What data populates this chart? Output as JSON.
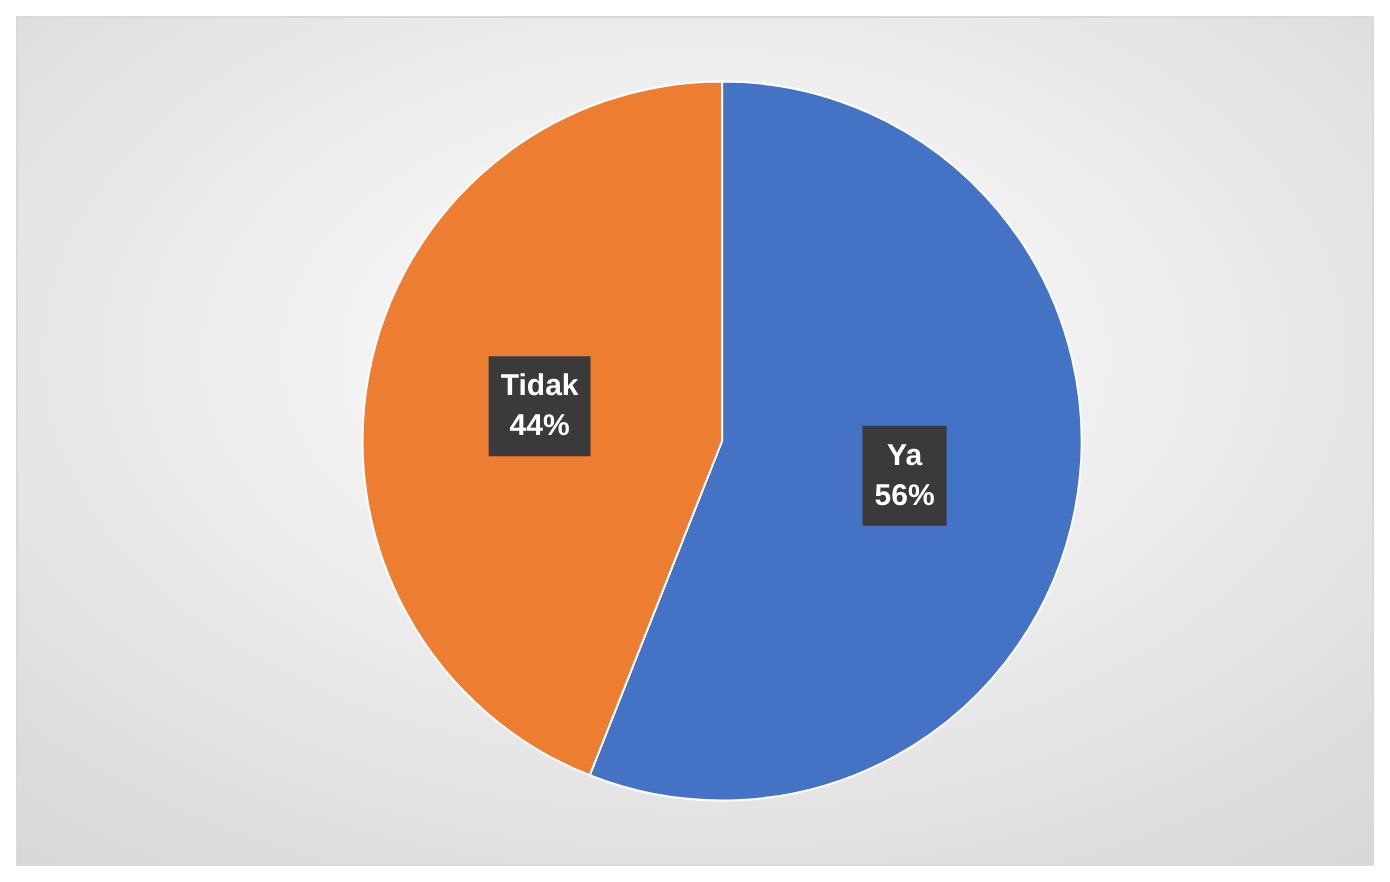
{
  "chart_data": {
    "type": "pie",
    "categories": [
      "Ya",
      "Tidak"
    ],
    "values": [
      56,
      44
    ],
    "value_labels": [
      "56%",
      "44%"
    ],
    "colors": [
      "#4472c4",
      "#ed7d31"
    ],
    "legend": false
  }
}
